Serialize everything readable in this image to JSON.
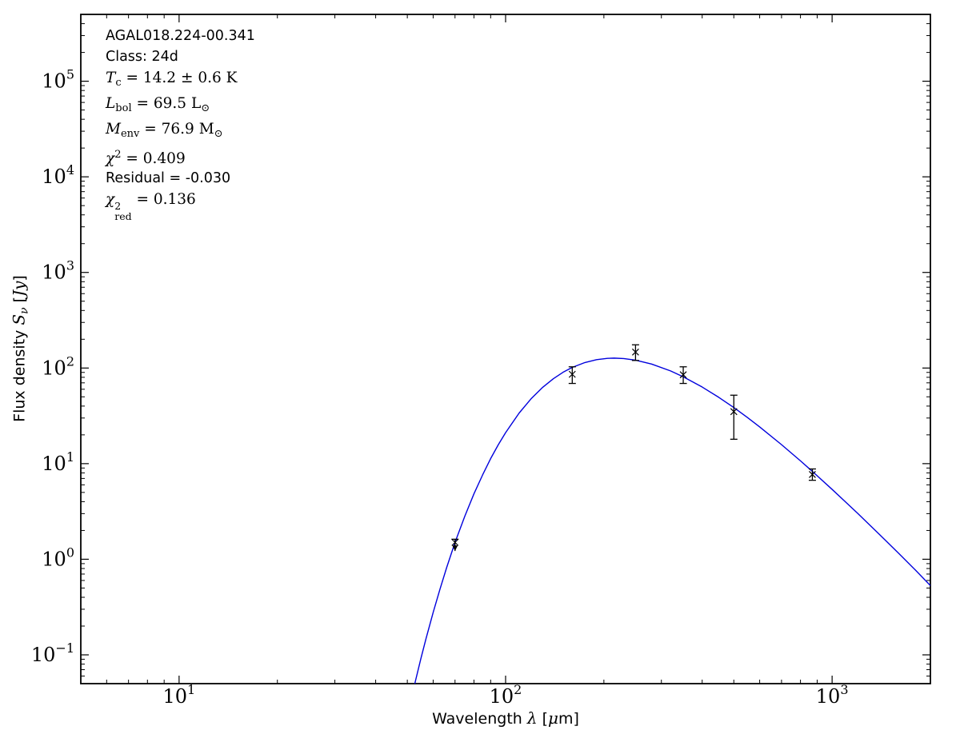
{
  "chart_data": {
    "type": "scatter+line",
    "title": "",
    "xlabel": "Wavelength λ [μm]",
    "ylabel": "Flux density Sν [Jy]",
    "xscale": "log",
    "yscale": "log",
    "xlim": [
      5,
      2000
    ],
    "ylim": [
      0.05,
      500000
    ],
    "grid": false,
    "legend": "none",
    "x_major_tick_labels": [
      "10¹",
      "10²",
      "10³"
    ],
    "y_major_tick_labels": [
      "10⁻¹",
      "10⁰",
      "10¹",
      "10²",
      "10³",
      "10⁴",
      "10⁵"
    ],
    "frame_color": "#000000",
    "series": [
      {
        "name": "greybody-model-curve",
        "type": "line",
        "color": "#0000dd",
        "points": [
          [
            52.5,
            0.047
          ],
          [
            53,
            0.054
          ],
          [
            55,
            0.091
          ],
          [
            57,
            0.146
          ],
          [
            60,
            0.278
          ],
          [
            63,
            0.49
          ],
          [
            66,
            0.82
          ],
          [
            70,
            1.5
          ],
          [
            75,
            2.82
          ],
          [
            80,
            4.84
          ],
          [
            85,
            7.6
          ],
          [
            90,
            11.3
          ],
          [
            95,
            15.8
          ],
          [
            100,
            21.1
          ],
          [
            110,
            33.8
          ],
          [
            120,
            48.2
          ],
          [
            130,
            63.0
          ],
          [
            140,
            77.2
          ],
          [
            150,
            90.4
          ],
          [
            160,
            101.5
          ],
          [
            175,
            114.2
          ],
          [
            190,
            122.4
          ],
          [
            205,
            126.3
          ],
          [
            215,
            127.0
          ],
          [
            230,
            125.7
          ],
          [
            250,
            120.9
          ],
          [
            280,
            110.0
          ],
          [
            320,
            93.3
          ],
          [
            350,
            81.0
          ],
          [
            400,
            63.3
          ],
          [
            450,
            49.3
          ],
          [
            500,
            38.6
          ],
          [
            550,
            30.4
          ],
          [
            600,
            24.2
          ],
          [
            700,
            15.8
          ],
          [
            800,
            10.7
          ],
          [
            870,
            8.3
          ],
          [
            1000,
            5.38
          ],
          [
            1100,
            3.97
          ],
          [
            1200,
            3.0
          ],
          [
            1400,
            1.8
          ],
          [
            1600,
            1.15
          ],
          [
            1800,
            0.77
          ],
          [
            2000,
            0.53
          ]
        ]
      },
      {
        "name": "photometry-points",
        "type": "scatter",
        "marker": "x",
        "color": "#000000",
        "points": [
          {
            "x": 70,
            "y": 1.5,
            "yerr_plus": 0.12,
            "yerr_minus": 0.28,
            "lower_arrow": true
          },
          {
            "x": 160,
            "y": 86,
            "yerr_plus": 17,
            "yerr_minus": 17,
            "lower_arrow": false
          },
          {
            "x": 250,
            "y": 147,
            "yerr_plus": 28,
            "yerr_minus": 27,
            "lower_arrow": false
          },
          {
            "x": 350,
            "y": 85,
            "yerr_plus": 18,
            "yerr_minus": 16,
            "lower_arrow": false
          },
          {
            "x": 500,
            "y": 35,
            "yerr_plus": 17,
            "yerr_minus": 17,
            "lower_arrow": false
          },
          {
            "x": 870,
            "y": 7.7,
            "yerr_plus": 1.1,
            "yerr_minus": 1.0,
            "lower_arrow": false
          }
        ]
      }
    ],
    "fit": {
      "source": "AGAL018.224-00.341",
      "class": "24d",
      "t_dust_K": 14.2,
      "t_dust_err_K": 0.6,
      "l_bol_lsun": 69.5,
      "m_env_msun": 76.9,
      "chi2": 0.409,
      "residual": -0.03,
      "chi2_red": 0.136
    }
  },
  "annotation": {
    "source_name": "AGAL018.224-00.341",
    "class_label": "Class: 24d",
    "temperature": {
      "sym": "T",
      "sub": "c",
      "rest": " = 14.2 ± 0.6 K"
    },
    "luminosity": {
      "sym": "L",
      "sub": "bol",
      "rest": " = 69.5 L",
      "unit_sub": "⊙"
    },
    "mass": {
      "sym": "M",
      "sub": "env",
      "rest": " = 76.9 M",
      "unit_sub": "⊙"
    },
    "chi2": {
      "sym": "χ",
      "sup": "2",
      "rest": " = 0.409"
    },
    "residual": "Residual = -0.030",
    "chi2_red": {
      "sym": "χ",
      "sup": "2",
      "sub": "red",
      "rest": " = 0.136"
    }
  },
  "axis_labels": {
    "x": {
      "prefix": "Wavelength ",
      "symbol": "λ",
      "unit_pre": " [",
      "unit_mu": "μ",
      "unit_post": "m]"
    },
    "y": {
      "prefix": "Flux density ",
      "symbol": "S",
      "symbol_sub": "ν",
      "unit_pre": " [",
      "unit": "Jy",
      "unit_post": "]"
    }
  }
}
